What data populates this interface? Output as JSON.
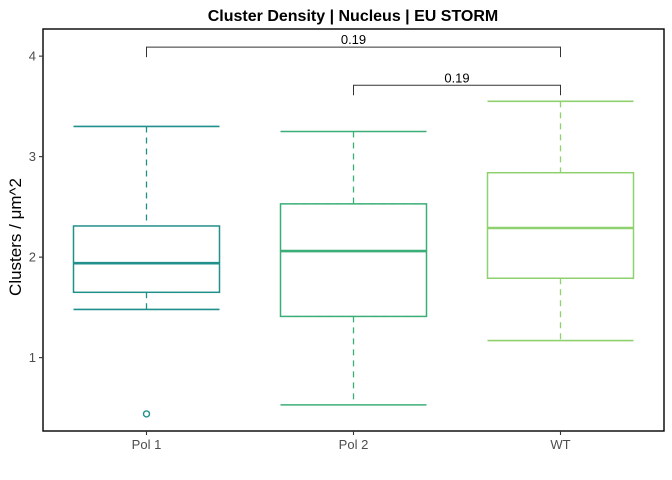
{
  "chart_data": {
    "type": "box",
    "title": "Cluster Density | Nucleus | EU STORM",
    "xlabel": "",
    "ylabel": "Clusters / μm^2",
    "ylim": [
      0.27,
      4.27
    ],
    "yticks": [
      1,
      2,
      3,
      4
    ],
    "grid": false,
    "legend": "none",
    "categories": [
      "Pol 1",
      "Pol 2",
      "WT"
    ],
    "boxes": [
      {
        "category": "Pol 1",
        "whisker_low": 1.48,
        "q1": 1.65,
        "median": 1.94,
        "q3": 2.31,
        "whisker_high": 3.3,
        "outliers": [
          0.44
        ],
        "color": "#21908C"
      },
      {
        "category": "Pol 2",
        "whisker_low": 0.53,
        "q1": 1.41,
        "median": 2.06,
        "q3": 2.53,
        "whisker_high": 3.25,
        "outliers": [],
        "color": "#3BAE77"
      },
      {
        "category": "WT",
        "whisker_low": 1.17,
        "q1": 1.79,
        "median": 2.29,
        "q3": 2.84,
        "whisker_high": 3.55,
        "outliers": [],
        "color": "#8FD16E"
      }
    ],
    "annotations": [
      {
        "from": "Pol 1",
        "to": "WT",
        "label": "0.19",
        "y": 4.09
      },
      {
        "from": "Pol 2",
        "to": "WT",
        "label": "0.19",
        "y": 3.71
      }
    ]
  }
}
